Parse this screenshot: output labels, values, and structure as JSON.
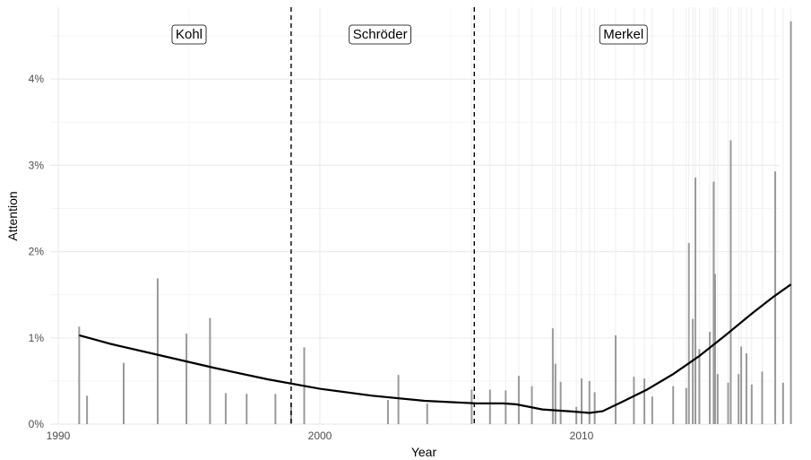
{
  "chart_data": {
    "type": "bar",
    "title": "",
    "xlabel": "Year",
    "ylabel": "Attention",
    "xlim": [
      1990.5,
      2017.3
    ],
    "ylim": [
      0,
      4.8
    ],
    "x_ticks": [
      1990,
      2000,
      2010
    ],
    "x_tick_labels": [
      "1990",
      "2000",
      "2010"
    ],
    "y_ticks": [
      0,
      1,
      2,
      3,
      4
    ],
    "y_tick_labels": [
      "0%",
      "1%",
      "2%",
      "3%",
      "4%"
    ],
    "grid": true,
    "colors": {
      "bars": "#999999",
      "trend": "#000000",
      "grid": "#ebebeb",
      "divider": "#000000"
    },
    "eras": [
      {
        "label": "Kohl",
        "center": 1995.0
      },
      {
        "label": "Schröder",
        "center": 2002.3
      },
      {
        "label": "Merkel",
        "center": 2011.6
      }
    ],
    "era_boundaries": [
      1998.9,
      2005.9
    ],
    "bars": [
      {
        "x": 1990.8,
        "y": 1.13
      },
      {
        "x": 1991.1,
        "y": 0.33
      },
      {
        "x": 1992.5,
        "y": 0.71
      },
      {
        "x": 1993.8,
        "y": 1.69
      },
      {
        "x": 1994.9,
        "y": 1.05
      },
      {
        "x": 1995.8,
        "y": 1.23
      },
      {
        "x": 1996.4,
        "y": 0.36
      },
      {
        "x": 1997.2,
        "y": 0.35
      },
      {
        "x": 1998.3,
        "y": 0.35
      },
      {
        "x": 1998.9,
        "y": 0.25
      },
      {
        "x": 1999.4,
        "y": 0.89
      },
      {
        "x": 2002.6,
        "y": 0.28
      },
      {
        "x": 2003.0,
        "y": 0.57
      },
      {
        "x": 2004.1,
        "y": 0.24
      },
      {
        "x": 2005.8,
        "y": 0.4
      },
      {
        "x": 2006.5,
        "y": 0.4
      },
      {
        "x": 2007.1,
        "y": 0.39
      },
      {
        "x": 2007.6,
        "y": 0.56
      },
      {
        "x": 2008.1,
        "y": 0.44
      },
      {
        "x": 2008.9,
        "y": 1.11
      },
      {
        "x": 2009.0,
        "y": 0.7
      },
      {
        "x": 2009.2,
        "y": 0.49
      },
      {
        "x": 2009.8,
        "y": 0.2
      },
      {
        "x": 2010.0,
        "y": 0.53
      },
      {
        "x": 2010.3,
        "y": 0.5
      },
      {
        "x": 2010.5,
        "y": 0.37
      },
      {
        "x": 2011.3,
        "y": 1.03
      },
      {
        "x": 2012.0,
        "y": 0.55
      },
      {
        "x": 2012.4,
        "y": 0.53
      },
      {
        "x": 2012.7,
        "y": 0.32
      },
      {
        "x": 2013.5,
        "y": 0.44
      },
      {
        "x": 2014.0,
        "y": 0.42
      },
      {
        "x": 2014.1,
        "y": 2.1
      },
      {
        "x": 2014.25,
        "y": 1.22
      },
      {
        "x": 2014.35,
        "y": 2.86
      },
      {
        "x": 2014.5,
        "y": 0.87
      },
      {
        "x": 2014.9,
        "y": 1.07
      },
      {
        "x": 2015.05,
        "y": 2.81
      },
      {
        "x": 2015.1,
        "y": 1.74
      },
      {
        "x": 2015.2,
        "y": 0.58
      },
      {
        "x": 2015.6,
        "y": 0.48
      },
      {
        "x": 2015.7,
        "y": 3.29
      },
      {
        "x": 2016.0,
        "y": 0.58
      },
      {
        "x": 2016.1,
        "y": 0.9
      },
      {
        "x": 2016.3,
        "y": 0.82
      },
      {
        "x": 2016.5,
        "y": 0.46
      },
      {
        "x": 2016.9,
        "y": 0.61
      },
      {
        "x": 2017.4,
        "y": 2.93
      },
      {
        "x": 2017.7,
        "y": 0.48
      },
      {
        "x": 2018.0,
        "y": 4.67
      }
    ],
    "trend": [
      {
        "x": 1990.8,
        "y": 1.03
      },
      {
        "x": 1992.0,
        "y": 0.93
      },
      {
        "x": 1994.0,
        "y": 0.79
      },
      {
        "x": 1996.0,
        "y": 0.65
      },
      {
        "x": 1998.0,
        "y": 0.52
      },
      {
        "x": 2000.0,
        "y": 0.41
      },
      {
        "x": 2002.0,
        "y": 0.33
      },
      {
        "x": 2004.0,
        "y": 0.27
      },
      {
        "x": 2006.0,
        "y": 0.24
      },
      {
        "x": 2007.0,
        "y": 0.24
      },
      {
        "x": 2007.5,
        "y": 0.23
      },
      {
        "x": 2008.5,
        "y": 0.17
      },
      {
        "x": 2009.5,
        "y": 0.15
      },
      {
        "x": 2010.3,
        "y": 0.13
      },
      {
        "x": 2010.8,
        "y": 0.15
      },
      {
        "x": 2011.5,
        "y": 0.25
      },
      {
        "x": 2012.5,
        "y": 0.4
      },
      {
        "x": 2013.5,
        "y": 0.58
      },
      {
        "x": 2014.5,
        "y": 0.79
      },
      {
        "x": 2015.5,
        "y": 1.03
      },
      {
        "x": 2016.5,
        "y": 1.28
      },
      {
        "x": 2017.3,
        "y": 1.47
      },
      {
        "x": 2018.0,
        "y": 1.62
      }
    ]
  }
}
